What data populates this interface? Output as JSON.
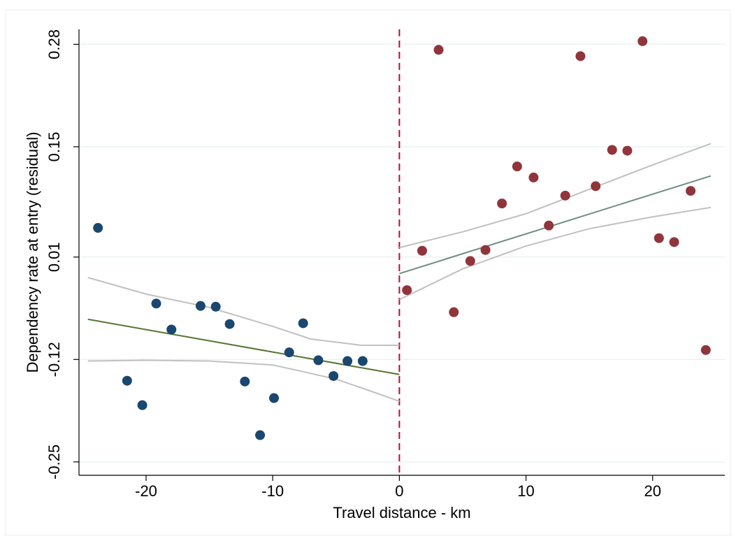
{
  "chart_data": {
    "type": "scatter",
    "x_label": "Travel distance - km",
    "y_label": "Dependency rate at entry (residual)",
    "xlim": [
      -25.3,
      25.7
    ],
    "ylim": [
      -0.267,
      0.299
    ],
    "xticks": [
      -20,
      -10,
      0,
      10,
      20
    ],
    "yticks": [
      -0.25,
      -0.12,
      0.01,
      0.15,
      0.28
    ],
    "grid": true,
    "grid_color": "#eaf2f3",
    "vline": {
      "x": 0,
      "color": "#c10534"
    },
    "series": [
      {
        "kind": "scatter",
        "color": "#1a476f",
        "x": [
          -23.8,
          -21.5,
          -20.3,
          -19.2,
          -18.0,
          -15.7,
          -14.5,
          -13.4,
          -12.2,
          -11.0,
          -9.9,
          -8.7,
          -7.6,
          -6.4,
          -5.2,
          -4.1,
          -2.9
        ],
        "values": [
          0.047,
          -0.147,
          -0.178,
          -0.049,
          -0.082,
          -0.052,
          -0.053,
          -0.075,
          -0.148,
          -0.216,
          -0.169,
          -0.111,
          -0.074,
          -0.121,
          -0.141,
          -0.122,
          -0.122
        ]
      },
      {
        "kind": "scatter",
        "color": "#90353b",
        "x": [
          0.6,
          1.8,
          3.1,
          4.3,
          5.6,
          6.8,
          8.1,
          9.3,
          10.6,
          11.8,
          13.1,
          14.3,
          15.5,
          16.8,
          18.0,
          19.2,
          20.5,
          21.7,
          23.0,
          24.2
        ],
        "values": [
          -0.032,
          0.018,
          0.273,
          -0.06,
          0.005,
          0.019,
          0.078,
          0.125,
          0.111,
          0.05,
          0.088,
          0.265,
          0.1,
          0.146,
          0.145,
          0.284,
          0.034,
          0.029,
          0.094,
          -0.108
        ]
      },
      {
        "kind": "line",
        "color": "#c0c0c0",
        "x": [
          -24.6,
          -20,
          -15,
          -10,
          -7,
          -3,
          0
        ],
        "values": [
          -0.016,
          -0.037,
          -0.054,
          -0.078,
          -0.094,
          -0.102,
          -0.102
        ]
      },
      {
        "kind": "line",
        "color": "#c0c0c0",
        "x": [
          -24.6,
          -20,
          -15,
          -10,
          -8,
          -5,
          -3,
          0
        ],
        "values": [
          -0.122,
          -0.121,
          -0.122,
          -0.127,
          -0.134,
          -0.145,
          -0.156,
          -0.173
        ]
      },
      {
        "kind": "line",
        "color": "#55752f",
        "x": [
          -24.6,
          0
        ],
        "values": [
          -0.069,
          -0.139
        ]
      },
      {
        "kind": "line",
        "color": "#c0c0c0",
        "x": [
          0,
          5,
          10,
          15,
          20,
          24.6
        ],
        "values": [
          0.022,
          0.042,
          0.065,
          0.096,
          0.127,
          0.154
        ]
      },
      {
        "kind": "line",
        "color": "#c0c0c0",
        "x": [
          0,
          5,
          10,
          15,
          20,
          24.6
        ],
        "values": [
          -0.044,
          -0.005,
          0.024,
          0.046,
          0.061,
          0.073
        ]
      },
      {
        "kind": "line",
        "color": "#6e8e84",
        "x": [
          0,
          24.6
        ],
        "values": [
          -0.011,
          0.113
        ]
      }
    ]
  }
}
